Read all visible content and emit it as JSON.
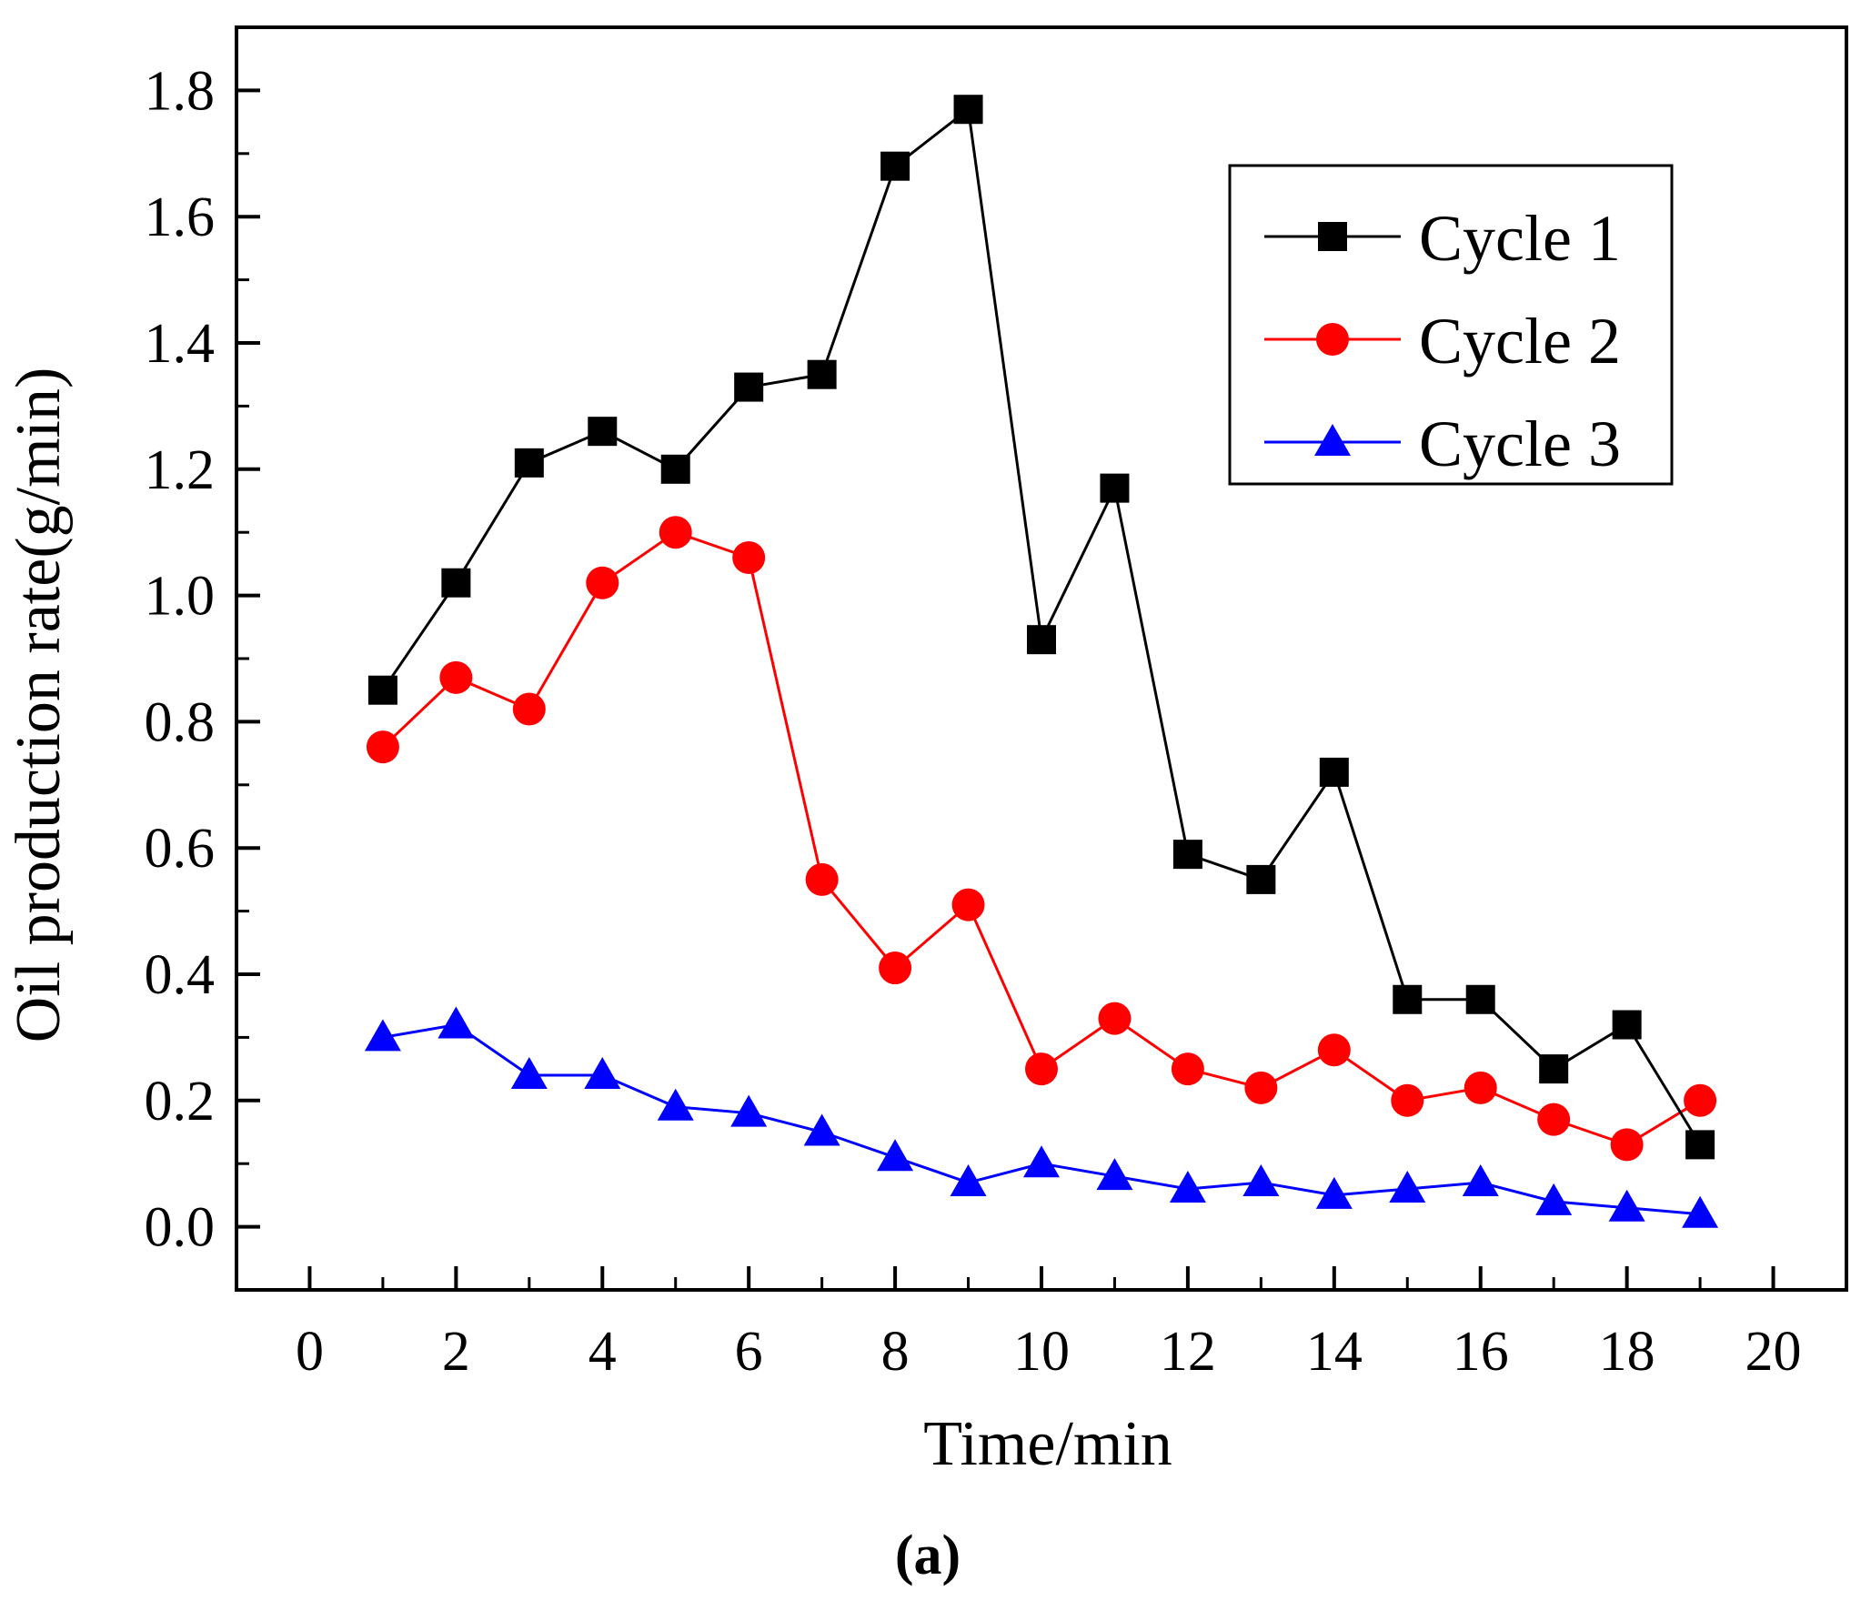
{
  "chart_data": {
    "type": "line",
    "title": "",
    "xlabel": "Time/min",
    "ylabel": "Oil production rate(g/min)",
    "xlim": [
      -1,
      21
    ],
    "ylim": [
      -0.1,
      1.9
    ],
    "x_ticks": [
      0,
      2,
      4,
      6,
      8,
      10,
      12,
      14,
      16,
      18,
      20
    ],
    "x_tick_labels": [
      "0",
      "2",
      "4",
      "6",
      "8",
      "10",
      "12",
      "14",
      "16",
      "18",
      "20"
    ],
    "y_ticks": [
      0.0,
      0.2,
      0.4,
      0.6,
      0.8,
      1.0,
      1.2,
      1.4,
      1.6,
      1.8
    ],
    "y_tick_labels": [
      "0.0",
      "0.2",
      "0.4",
      "0.6",
      "0.8",
      "1.0",
      "1.2",
      "1.4",
      "1.6",
      "1.8"
    ],
    "grid": false,
    "legend_position": "top-right",
    "x": [
      1,
      2,
      3,
      4,
      5,
      6,
      7,
      8,
      9,
      10,
      11,
      12,
      13,
      14,
      15,
      16,
      17,
      18,
      19
    ],
    "series": [
      {
        "name": "Cycle 1",
        "marker": "square",
        "color": "#000000",
        "values": [
          0.85,
          1.02,
          1.21,
          1.26,
          1.2,
          1.33,
          1.35,
          1.68,
          1.77,
          0.93,
          1.17,
          0.59,
          0.55,
          0.72,
          0.36,
          0.36,
          0.25,
          0.32,
          0.13
        ]
      },
      {
        "name": "Cycle 2",
        "marker": "circle",
        "color": "#ff0000",
        "values": [
          0.76,
          0.87,
          0.82,
          1.02,
          1.1,
          1.06,
          0.55,
          0.41,
          0.51,
          0.25,
          0.33,
          0.25,
          0.22,
          0.28,
          0.2,
          0.22,
          0.17,
          0.13,
          0.2
        ]
      },
      {
        "name": "Cycle 3",
        "marker": "triangle",
        "color": "#0000ff",
        "values": [
          0.3,
          0.32,
          0.24,
          0.24,
          0.19,
          0.18,
          0.15,
          0.11,
          0.07,
          0.1,
          0.08,
          0.06,
          0.07,
          0.05,
          0.06,
          0.07,
          0.04,
          0.03,
          0.02
        ]
      }
    ],
    "annotation": "(a)"
  }
}
